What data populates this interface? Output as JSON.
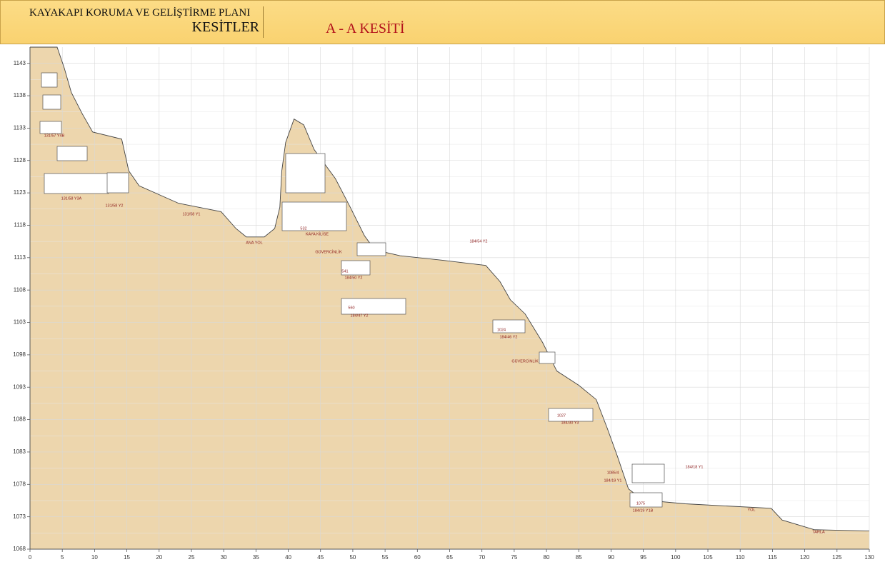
{
  "header": {
    "title": "KAYAKAPI KORUMA VE GELİŞTİRME PLANI",
    "subtitle": "KESİTLER",
    "section": "A - A KESİTİ"
  },
  "xlim": [
    0,
    130
  ],
  "xticks": [
    0,
    5,
    10,
    15,
    20,
    25,
    30,
    35,
    40,
    45,
    50,
    55,
    60,
    65,
    70,
    75,
    80,
    85,
    90,
    95,
    100,
    105,
    110,
    115,
    120,
    125,
    130
  ],
  "ylim": [
    1068,
    1145.5
  ],
  "yticks": [
    1068,
    1073,
    1078,
    1083,
    1088,
    1093,
    1098,
    1103,
    1108,
    1113,
    1118,
    1123,
    1128,
    1133,
    1138,
    1143
  ],
  "profile": [
    [
      0,
      1145.5
    ],
    [
      4.2,
      1145.5
    ],
    [
      5.3,
      1142.3
    ],
    [
      6.4,
      1138.5
    ],
    [
      8.1,
      1135.2
    ],
    [
      9.7,
      1132.4
    ],
    [
      14.2,
      1131.3
    ],
    [
      15.3,
      1126.4
    ],
    [
      16.9,
      1124.1
    ],
    [
      23.0,
      1121.4
    ],
    [
      29.6,
      1120.1
    ],
    [
      31.9,
      1117.5
    ],
    [
      33.5,
      1116.2
    ],
    [
      36.3,
      1116.2
    ],
    [
      37.9,
      1117.5
    ],
    [
      38.7,
      1120.8
    ],
    [
      39.0,
      1126.4
    ],
    [
      39.6,
      1130.8
    ],
    [
      40.9,
      1134.4
    ],
    [
      42.4,
      1133.5
    ],
    [
      44.0,
      1129.7
    ],
    [
      47.3,
      1125.2
    ],
    [
      49.6,
      1120.8
    ],
    [
      51.8,
      1116.4
    ],
    [
      53.4,
      1114.2
    ],
    [
      57.3,
      1113.3
    ],
    [
      63.9,
      1112.6
    ],
    [
      70.6,
      1111.8
    ],
    [
      72.8,
      1109.3
    ],
    [
      74.4,
      1106.5
    ],
    [
      76.7,
      1104.3
    ],
    [
      79.4,
      1099.9
    ],
    [
      81.6,
      1095.5
    ],
    [
      85.0,
      1093.3
    ],
    [
      87.7,
      1091.1
    ],
    [
      89.4,
      1086.7
    ],
    [
      91.0,
      1082.3
    ],
    [
      92.7,
      1077.3
    ],
    [
      94.9,
      1075.6
    ],
    [
      101.5,
      1075.0
    ],
    [
      114.8,
      1074.3
    ],
    [
      116.5,
      1072.5
    ],
    [
      121.5,
      1071.0
    ],
    [
      130,
      1070.8
    ]
  ],
  "annotations": [
    "ANA YOL",
    "KAYA KİLİSE",
    "GÜVERCİNLİK",
    "GÜVERCİNLİK",
    "131/57 Y4B",
    "131/58 Y3A",
    "131/58 Y2",
    "131/58 Y1",
    "184/50 Y2",
    "184/47 Y2",
    "184/54 Y2",
    "184/46 Y2",
    "184/30 Y3",
    "184/19 Y1B",
    "184/18 Y1",
    "184/19 Y1",
    "YOL",
    "TARLA",
    "532",
    "541",
    "560",
    "1024",
    "1027",
    "1075",
    "1085/4"
  ]
}
